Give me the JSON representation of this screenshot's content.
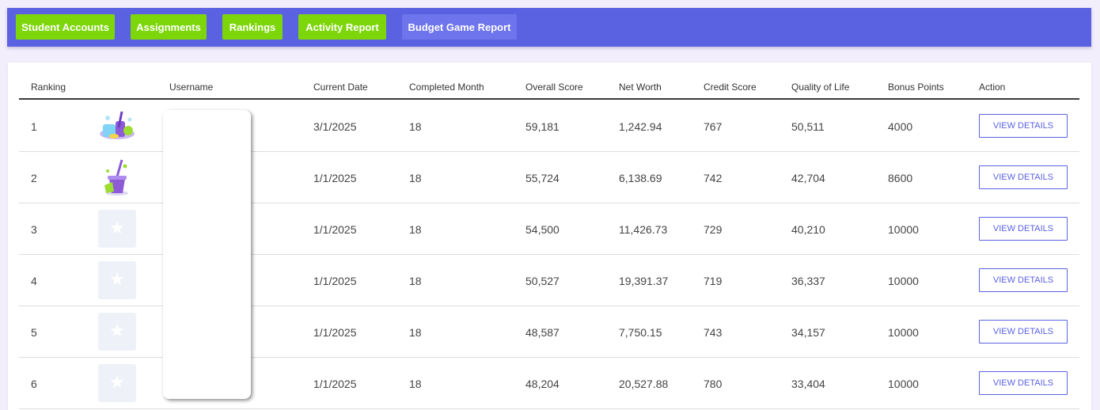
{
  "nav": {
    "student_accounts": "Student Accounts",
    "assignments": "Assignments",
    "rankings": "Rankings",
    "activity_report": "Activity Report",
    "budget_game_report": "Budget Game Report"
  },
  "colors": {
    "nav_bar": "#5b62e2",
    "nav_button": "#7dd60a",
    "active_button": "#6e74ec",
    "action_button_border": "#5b62e2"
  },
  "table": {
    "headers": {
      "ranking": "Ranking",
      "username": "Username",
      "current_date": "Current Date",
      "completed_month": "Completed Month",
      "overall_score": "Overall Score",
      "net_worth": "Net Worth",
      "credit_score": "Credit Score",
      "quality_of_life": "Quality of Life",
      "bonus_points": "Bonus Points",
      "action": "Action"
    },
    "action_label": "VIEW DETAILS",
    "rows": [
      {
        "rank": "1",
        "avatar": "cleaning-supplies-icon",
        "current_date": "3/1/2025",
        "completed_month": "18",
        "overall_score": "59,181",
        "net_worth": "1,242.94",
        "credit_score": "767",
        "quality_of_life": "50,511",
        "bonus_points": "4000"
      },
      {
        "rank": "2",
        "avatar": "mop-bucket-icon",
        "current_date": "1/1/2025",
        "completed_month": "18",
        "overall_score": "55,724",
        "net_worth": "6,138.69",
        "credit_score": "742",
        "quality_of_life": "42,704",
        "bonus_points": "8600"
      },
      {
        "rank": "3",
        "avatar": "star-placeholder-icon",
        "current_date": "1/1/2025",
        "completed_month": "18",
        "overall_score": "54,500",
        "net_worth": "11,426.73",
        "credit_score": "729",
        "quality_of_life": "40,210",
        "bonus_points": "10000"
      },
      {
        "rank": "4",
        "avatar": "star-placeholder-icon",
        "current_date": "1/1/2025",
        "completed_month": "18",
        "overall_score": "50,527",
        "net_worth": "19,391.37",
        "credit_score": "719",
        "quality_of_life": "36,337",
        "bonus_points": "10000"
      },
      {
        "rank": "5",
        "avatar": "star-placeholder-icon",
        "current_date": "1/1/2025",
        "completed_month": "18",
        "overall_score": "48,587",
        "net_worth": "7,750.15",
        "credit_score": "743",
        "quality_of_life": "34,157",
        "bonus_points": "10000"
      },
      {
        "rank": "6",
        "avatar": "star-placeholder-icon",
        "current_date": "1/1/2025",
        "completed_month": "18",
        "overall_score": "48,204",
        "net_worth": "20,527.88",
        "credit_score": "780",
        "quality_of_life": "33,404",
        "bonus_points": "10000"
      }
    ]
  }
}
